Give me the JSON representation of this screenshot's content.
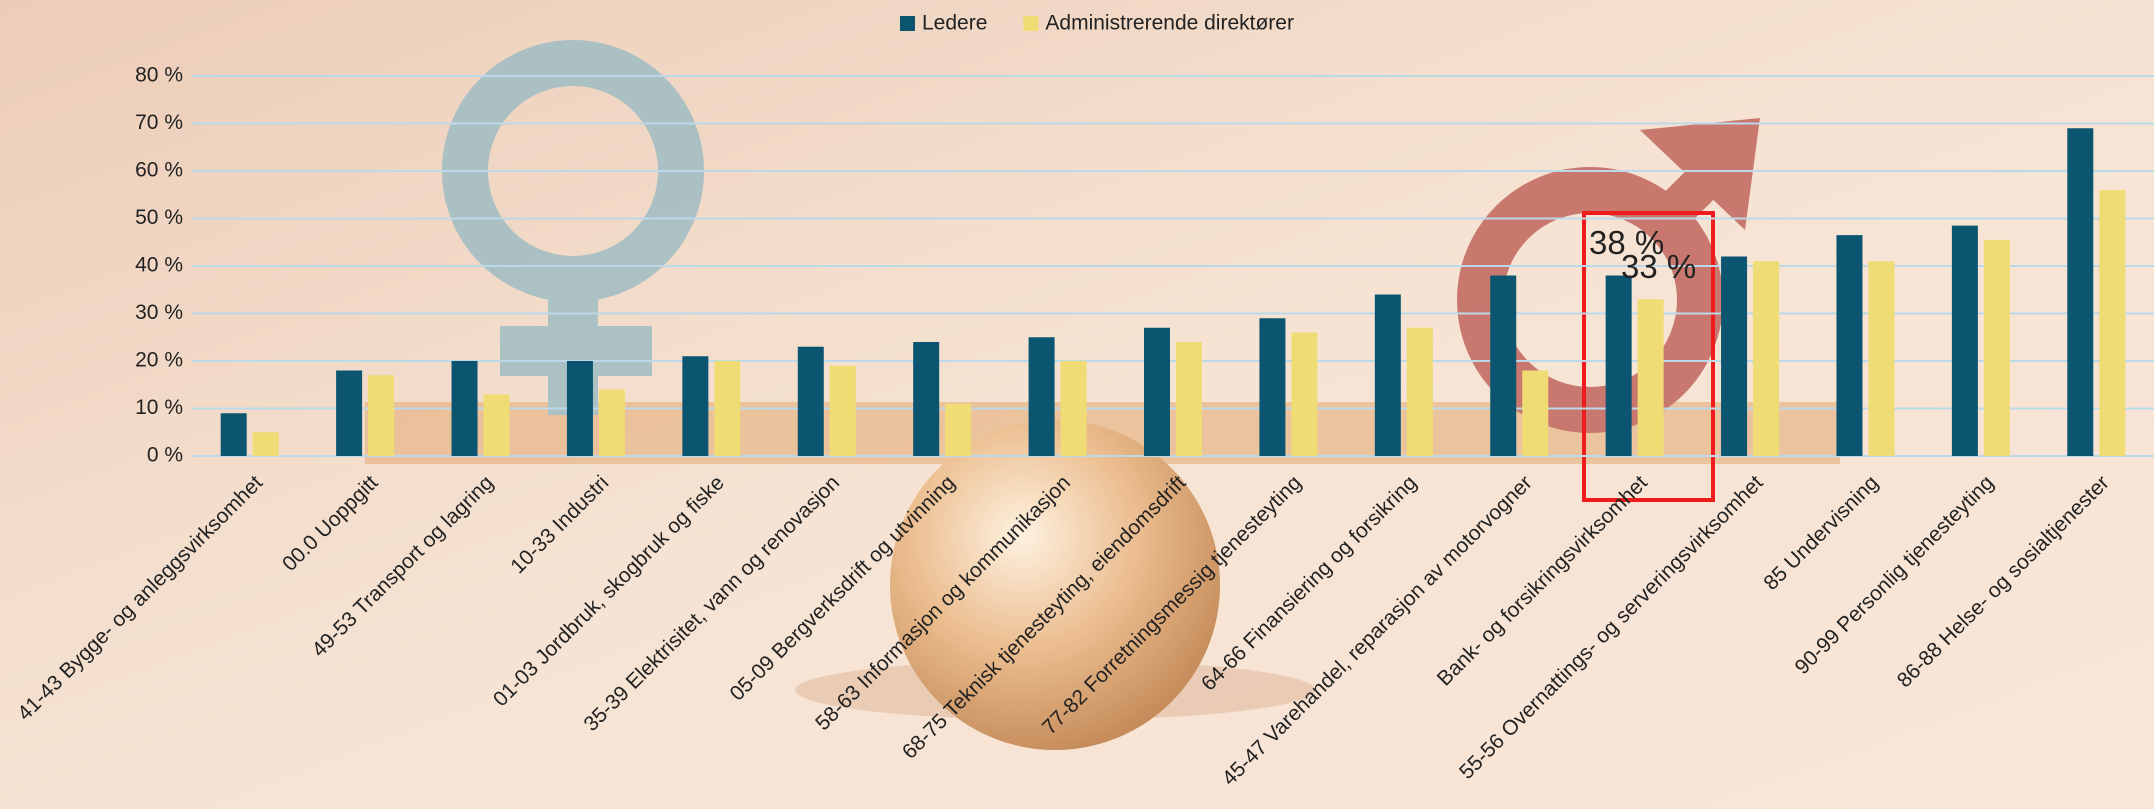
{
  "chart_data": {
    "type": "bar",
    "categories": [
      "41-43 Bygge- og anleggsvirksomhet",
      "00.0 Uoppgitt",
      "49-53 Transport og lagring",
      "10-33 Industri",
      "01-03 Jordbruk, skogbruk og fiske",
      "35-39 Elektrisitet, vann og renovasjon",
      "05-09 Bergverksdrift og utvinning",
      "58-63 Informasjon og kommunikasjon",
      "68-75 Teknisk tjenesteyting, eiendomsdrift",
      "77-82 Forretningsmessig tjenesteyting",
      "64-66 Finansiering og forsikring",
      "45-47 Varehandel, reparasjon av motorvogner",
      "Bank- og forsikringsvirksomhet",
      "55-56 Overnattings- og serveringsvirksomhet",
      "85 Undervisning",
      "90-99 Personlig tjenesteyting",
      "86-88 Helse- og sosialtjenester"
    ],
    "series": [
      {
        "name": "Ledere",
        "color": "#0b5571",
        "values": [
          9,
          18,
          20,
          20,
          21,
          23,
          24,
          25,
          27,
          29,
          34,
          38,
          38,
          42,
          46.5,
          48.5,
          69
        ],
        "value_labels": [
          null,
          null,
          null,
          null,
          null,
          null,
          null,
          null,
          null,
          null,
          null,
          null,
          "38 %",
          null,
          null,
          null,
          null
        ]
      },
      {
        "name": "Administrerende direktører",
        "color": "#f0dc74",
        "values": [
          5,
          17,
          13,
          14,
          20,
          19,
          11,
          20,
          24,
          26,
          27,
          18,
          33,
          41,
          41,
          45.5,
          56
        ],
        "value_labels": [
          null,
          null,
          null,
          null,
          null,
          null,
          null,
          null,
          null,
          null,
          null,
          null,
          "33 %",
          null,
          null,
          null,
          null
        ]
      }
    ],
    "ylim": [
      0,
      80
    ],
    "yticks": [
      {
        "value": 0,
        "label": "0 %"
      },
      {
        "value": 10,
        "label": "10 %"
      },
      {
        "value": 20,
        "label": "20 %"
      },
      {
        "value": 30,
        "label": "30 %"
      },
      {
        "value": 40,
        "label": "40 %"
      },
      {
        "value": 50,
        "label": "50 %"
      },
      {
        "value": 60,
        "label": "60 %"
      },
      {
        "value": 70,
        "label": "70 %"
      },
      {
        "value": 80,
        "label": "80 %"
      }
    ],
    "grid": true,
    "legend": "top"
  }
}
